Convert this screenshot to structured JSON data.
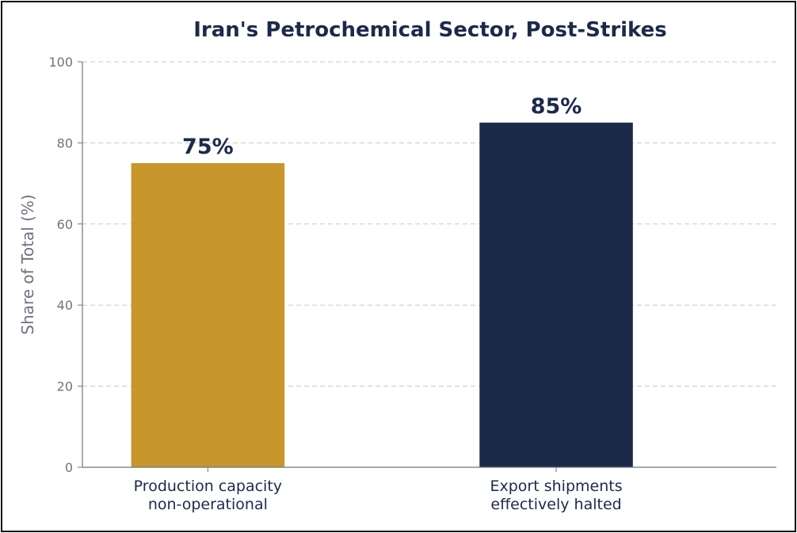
{
  "chart_data": {
    "type": "bar",
    "title": "Iran's Petrochemical Sector, Post-Strikes",
    "xlabel": "",
    "ylabel": "Share of Total (%)",
    "categories": [
      [
        "Production capacity",
        "non-operational"
      ],
      [
        "Export shipments",
        "effectively halted"
      ]
    ],
    "values": [
      75,
      85
    ],
    "data_labels": [
      "75%",
      "85%"
    ],
    "bar_colors": [
      "#c8972b",
      "#1c2a4a"
    ],
    "ylim": [
      0,
      100
    ],
    "yticks": [
      0,
      20,
      40,
      60,
      80,
      100
    ],
    "grid": true,
    "legend": "none"
  }
}
